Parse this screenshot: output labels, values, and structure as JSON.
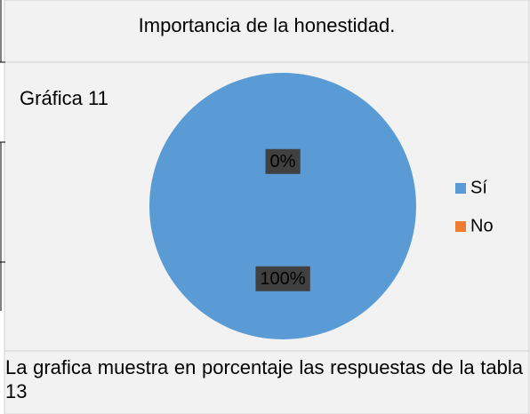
{
  "chart_data": {
    "type": "pie",
    "title": "Importancia de la honestidad.",
    "subtitle": "Gráfica 11",
    "categories": [
      "Sí",
      "No"
    ],
    "values": [
      100,
      0
    ],
    "value_labels": [
      "100%",
      "0%"
    ],
    "colors": [
      "#5b9bd5",
      "#ed7d31"
    ],
    "legend": "right"
  },
  "caption": "La grafica muestra en porcentaje las respuestas de la tabla 13"
}
